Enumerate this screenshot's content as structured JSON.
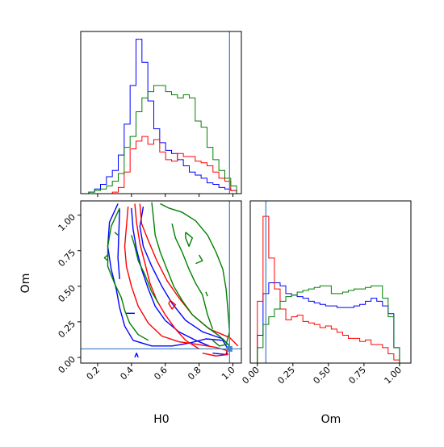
{
  "chart_data": {
    "type": "corner",
    "parameters": [
      "H0",
      "Om"
    ],
    "truth": {
      "H0": 0.98,
      "Om": 0.06
    },
    "truth_color": "#4a86c8",
    "series": [
      {
        "color": "#0000ff"
      },
      {
        "color": "#ff0000"
      },
      {
        "color": "#008000"
      }
    ],
    "hist_H0": {
      "xlim": [
        0.1,
        1.05
      ],
      "bin_edges": [
        0.147,
        0.182,
        0.217,
        0.252,
        0.287,
        0.322,
        0.357,
        0.392,
        0.427,
        0.462,
        0.497,
        0.532,
        0.567,
        0.602,
        0.637,
        0.672,
        0.707,
        0.742,
        0.777,
        0.812,
        0.847,
        0.882,
        0.917,
        0.952,
        0.987,
        1.022
      ],
      "counts": [
        [
          0.01,
          0.03,
          0.06,
          0.11,
          0.15,
          0.25,
          0.45,
          0.7,
          1.0,
          0.85,
          0.6,
          0.42,
          0.33,
          0.28,
          0.26,
          0.22,
          0.18,
          0.14,
          0.12,
          0.1,
          0.07,
          0.06,
          0.04,
          0.03,
          0.02
        ],
        [
          0.0,
          0.0,
          0.0,
          0.0,
          0.01,
          0.04,
          0.14,
          0.29,
          0.34,
          0.37,
          0.32,
          0.35,
          0.27,
          0.22,
          0.21,
          0.26,
          0.24,
          0.24,
          0.21,
          0.2,
          0.18,
          0.14,
          0.1,
          0.08,
          0.02
        ],
        [
          0.01,
          0.02,
          0.03,
          0.05,
          0.08,
          0.13,
          0.3,
          0.37,
          0.53,
          0.62,
          0.66,
          0.7,
          0.7,
          0.66,
          0.64,
          0.62,
          0.64,
          0.62,
          0.47,
          0.43,
          0.3,
          0.22,
          0.15,
          0.1,
          0.05
        ]
      ],
      "xticks": [
        0.2,
        0.4,
        0.6,
        0.8,
        1.0
      ]
    },
    "hist_Om": {
      "xlim": [
        -0.05,
        1.08
      ],
      "bin_edges": [
        0.0,
        0.04,
        0.08,
        0.12,
        0.16,
        0.2,
        0.24,
        0.28,
        0.32,
        0.36,
        0.4,
        0.44,
        0.48,
        0.52,
        0.56,
        0.6,
        0.64,
        0.68,
        0.72,
        0.76,
        0.8,
        0.84,
        0.88,
        0.92,
        0.96,
        1.0
      ],
      "counts": [
        [
          0.18,
          0.45,
          0.52,
          0.52,
          0.5,
          0.45,
          0.44,
          0.43,
          0.42,
          0.4,
          0.39,
          0.38,
          0.37,
          0.37,
          0.36,
          0.36,
          0.36,
          0.37,
          0.38,
          0.4,
          0.42,
          0.4,
          0.37,
          0.32,
          0.1
        ],
        [
          0.4,
          0.95,
          0.68,
          0.48,
          0.35,
          0.28,
          0.3,
          0.31,
          0.27,
          0.26,
          0.25,
          0.23,
          0.24,
          0.22,
          0.2,
          0.18,
          0.16,
          0.16,
          0.14,
          0.15,
          0.12,
          0.12,
          0.1,
          0.06,
          0.02
        ],
        [
          0.1,
          0.25,
          0.3,
          0.35,
          0.4,
          0.43,
          0.44,
          0.46,
          0.47,
          0.48,
          0.49,
          0.5,
          0.5,
          0.45,
          0.45,
          0.46,
          0.47,
          0.48,
          0.48,
          0.49,
          0.5,
          0.5,
          0.42,
          0.3,
          0.1
        ]
      ],
      "xticks": [
        0.0,
        0.25,
        0.5,
        0.75,
        1.0
      ],
      "xtick_labels": [
        "0.00",
        "0.25",
        "0.50",
        "0.75",
        "1.00"
      ]
    },
    "contour": {
      "xlim": [
        0.1,
        1.05
      ],
      "ylim": [
        -0.04,
        1.1
      ],
      "xticks": [
        0.2,
        0.4,
        0.6,
        0.8,
        1.0
      ],
      "yticks": [
        0.0,
        0.25,
        0.5,
        0.75,
        1.0
      ],
      "ytick_labels": [
        "0.00",
        "0.25",
        "0.50",
        "0.75",
        "1.00"
      ],
      "xlabel": "H0",
      "ylabel": "Om",
      "lines": [
        {
          "series": 0,
          "points": [
            [
              0.32,
              1.08
            ],
            [
              0.27,
              0.95
            ],
            [
              0.26,
              0.78
            ],
            [
              0.28,
              0.62
            ],
            [
              0.31,
              0.48
            ],
            [
              0.33,
              0.35
            ],
            [
              0.36,
              0.22
            ],
            [
              0.41,
              0.12
            ],
            [
              0.52,
              0.08
            ],
            [
              0.64,
              0.08
            ],
            [
              0.74,
              0.1
            ],
            [
              0.84,
              0.13
            ],
            [
              0.94,
              0.12
            ],
            [
              0.97,
              0.06
            ],
            [
              0.96,
              0.02
            ],
            [
              0.88,
              0.03
            ]
          ]
        },
        {
          "series": 0,
          "points": [
            [
              0.86,
              0.08
            ],
            [
              0.78,
              0.12
            ],
            [
              0.68,
              0.18
            ],
            [
              0.6,
              0.26
            ],
            [
              0.54,
              0.36
            ],
            [
              0.5,
              0.48
            ],
            [
              0.46,
              0.62
            ],
            [
              0.43,
              0.76
            ],
            [
              0.41,
              0.9
            ],
            [
              0.4,
              1.05
            ]
          ]
        },
        {
          "series": 0,
          "points": [
            [
              0.47,
              1.06
            ],
            [
              0.45,
              0.92
            ],
            [
              0.47,
              0.78
            ],
            [
              0.52,
              0.64
            ],
            [
              0.58,
              0.5
            ],
            [
              0.64,
              0.38
            ],
            [
              0.72,
              0.26
            ],
            [
              0.82,
              0.18
            ],
            [
              0.94,
              0.13
            ],
            [
              0.98,
              0.08
            ]
          ]
        },
        {
          "series": 0,
          "points": [
            [
              0.37,
              0.31
            ],
            [
              0.42,
              0.31
            ]
          ]
        },
        {
          "series": 0,
          "points": [
            [
              0.42,
              0.0
            ],
            [
              0.43,
              0.03
            ],
            [
              0.44,
              0.0
            ]
          ]
        },
        {
          "series": 0,
          "points": [
            [
              0.33,
              1.04
            ],
            [
              0.32,
              0.7
            ],
            [
              0.33,
              0.55
            ]
          ]
        },
        {
          "series": 1,
          "points": [
            [
              0.38,
              1.06
            ],
            [
              0.37,
              0.92
            ],
            [
              0.36,
              0.78
            ],
            [
              0.37,
              0.64
            ],
            [
              0.4,
              0.5
            ],
            [
              0.44,
              0.36
            ],
            [
              0.5,
              0.24
            ],
            [
              0.58,
              0.15
            ],
            [
              0.68,
              0.11
            ],
            [
              0.8,
              0.09
            ],
            [
              0.9,
              0.07
            ],
            [
              0.96,
              0.05
            ],
            [
              0.97,
              0.02
            ],
            [
              0.9,
              0.01
            ],
            [
              0.82,
              0.03
            ]
          ]
        },
        {
          "series": 1,
          "points": [
            [
              0.8,
              0.06
            ],
            [
              0.72,
              0.12
            ],
            [
              0.66,
              0.2
            ],
            [
              0.6,
              0.3
            ],
            [
              0.55,
              0.4
            ],
            [
              0.51,
              0.52
            ],
            [
              0.48,
              0.66
            ],
            [
              0.45,
              0.8
            ],
            [
              0.43,
              0.95
            ],
            [
              0.42,
              1.08
            ]
          ]
        },
        {
          "series": 1,
          "points": [
            [
              0.45,
              1.08
            ],
            [
              0.46,
              0.94
            ],
            [
              0.5,
              0.82
            ],
            [
              0.55,
              0.68
            ],
            [
              0.61,
              0.54
            ],
            [
              0.68,
              0.42
            ],
            [
              0.76,
              0.3
            ],
            [
              0.86,
              0.2
            ],
            [
              0.98,
              0.14
            ],
            [
              1.03,
              0.08
            ]
          ]
        },
        {
          "series": 1,
          "points": [
            [
              0.62,
              0.38
            ],
            [
              0.64,
              0.34
            ],
            [
              0.66,
              0.37
            ],
            [
              0.63,
              0.4
            ],
            [
              0.62,
              0.38
            ]
          ]
        },
        {
          "series": 2,
          "points": [
            [
              0.33,
              1.05
            ],
            [
              0.28,
              0.92
            ],
            [
              0.26,
              0.78
            ],
            [
              0.26,
              0.64
            ],
            [
              0.3,
              0.52
            ],
            [
              0.34,
              0.42
            ],
            [
              0.36,
              0.33
            ],
            [
              0.39,
              0.24
            ],
            [
              0.44,
              0.16
            ],
            [
              0.5,
              0.12
            ]
          ]
        },
        {
          "series": 2,
          "points": [
            [
              0.26,
              0.72
            ],
            [
              0.24,
              0.7
            ],
            [
              0.26,
              0.68
            ]
          ]
        },
        {
          "series": 2,
          "points": [
            [
              0.3,
              0.88
            ],
            [
              0.32,
              0.86
            ]
          ]
        },
        {
          "series": 2,
          "points": [
            [
              0.52,
              1.09
            ],
            [
              0.53,
              0.98
            ],
            [
              0.54,
              0.86
            ],
            [
              0.57,
              0.74
            ],
            [
              0.61,
              0.62
            ],
            [
              0.65,
              0.5
            ],
            [
              0.7,
              0.4
            ],
            [
              0.76,
              0.3
            ],
            [
              0.84,
              0.22
            ],
            [
              0.92,
              0.15
            ],
            [
              0.98,
              0.08
            ]
          ]
        },
        {
          "series": 2,
          "points": [
            [
              0.57,
              1.08
            ],
            [
              0.62,
              1.05
            ],
            [
              0.7,
              1.02
            ],
            [
              0.78,
              0.96
            ],
            [
              0.85,
              0.86
            ],
            [
              0.9,
              0.74
            ],
            [
              0.94,
              0.62
            ],
            [
              0.96,
              0.48
            ],
            [
              0.97,
              0.34
            ],
            [
              0.98,
              0.18
            ],
            [
              0.96,
              0.09
            ],
            [
              0.92,
              0.08
            ],
            [
              0.88,
              0.12
            ]
          ]
        },
        {
          "series": 2,
          "points": [
            [
              0.4,
              0.86
            ],
            [
              0.42,
              0.78
            ],
            [
              0.44,
              0.68
            ],
            [
              0.48,
              0.58
            ],
            [
              0.52,
              0.46
            ],
            [
              0.56,
              0.38
            ]
          ]
        },
        {
          "series": 2,
          "points": [
            [
              0.64,
              0.94
            ],
            [
              0.66,
              0.84
            ],
            [
              0.7,
              0.74
            ],
            [
              0.74,
              0.62
            ],
            [
              0.78,
              0.52
            ],
            [
              0.82,
              0.44
            ],
            [
              0.85,
              0.3
            ],
            [
              0.88,
              0.2
            ]
          ]
        },
        {
          "series": 2,
          "points": [
            [
              0.72,
              0.88
            ],
            [
              0.76,
              0.84
            ],
            [
              0.74,
              0.78
            ],
            [
              0.72,
              0.84
            ],
            [
              0.72,
              0.88
            ]
          ]
        },
        {
          "series": 2,
          "points": [
            [
              0.8,
              0.72
            ],
            [
              0.82,
              0.68
            ],
            [
              0.78,
              0.66
            ]
          ]
        },
        {
          "series": 2,
          "points": [
            [
              0.84,
              0.46
            ],
            [
              0.85,
              0.43
            ]
          ]
        }
      ]
    }
  }
}
